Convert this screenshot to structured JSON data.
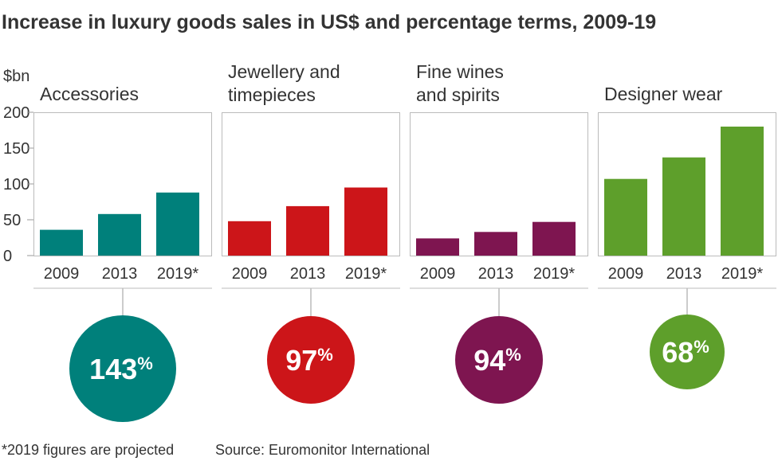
{
  "title": "Increase in luxury goods sales in US$ and percentage terms, 2009-19",
  "unit_label": "$bn",
  "footnote": "*2019 figures are projected",
  "source": "Source: Euromonitor International",
  "chart_data": {
    "type": "bar",
    "ylim": [
      0,
      200
    ],
    "yticks": [
      0,
      50,
      100,
      150,
      200
    ],
    "categories": [
      "2009",
      "2013",
      "2019*"
    ],
    "grid": false,
    "panels": [
      {
        "name": "Accessories",
        "name_lines": [
          "Accessories"
        ],
        "values": [
          36,
          58,
          88
        ],
        "color": "#00807b",
        "increase": "143",
        "increase_unit": "%"
      },
      {
        "name": "Jewellery and timepieces",
        "name_lines": [
          "Jewellery and",
          "timepieces"
        ],
        "values": [
          48,
          69,
          95
        ],
        "color": "#cc1519",
        "increase": "97",
        "increase_unit": "%"
      },
      {
        "name": "Fine wines and spirits",
        "name_lines": [
          "Fine wines",
          "and spirits"
        ],
        "values": [
          24,
          33,
          47
        ],
        "color": "#7e1550",
        "increase": "94",
        "increase_unit": "%"
      },
      {
        "name": "Designer wear",
        "name_lines": [
          "Designer wear"
        ],
        "values": [
          107,
          137,
          180
        ],
        "color": "#5e9f2b",
        "increase": "68",
        "increase_unit": "%"
      }
    ]
  }
}
